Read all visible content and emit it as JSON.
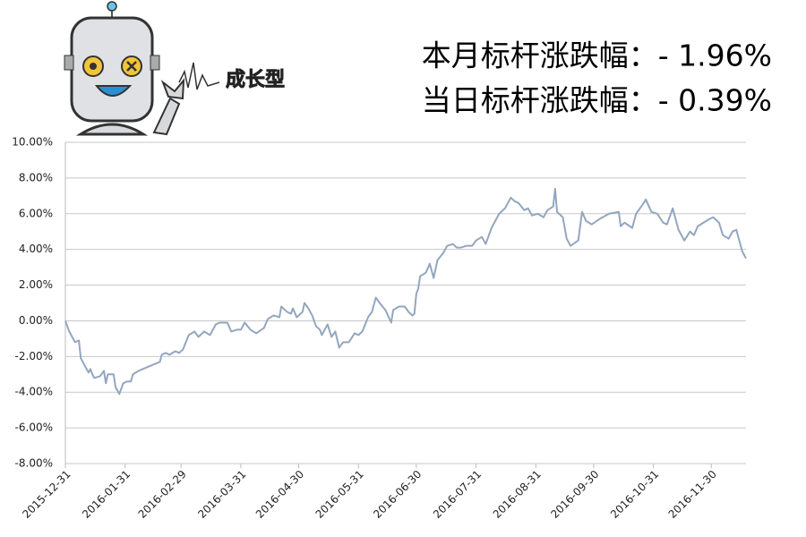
{
  "logo": {
    "text": "成长型"
  },
  "chart_data": {
    "type": "line",
    "annotations": [
      "本月标杆涨跌幅：- 1.96%",
      "当日标杆涨跌幅：- 0.39%"
    ],
    "x": [
      "2015-12-31",
      "2016-01-02",
      "2016-01-05",
      "2016-01-07",
      "2016-01-08",
      "2016-01-10",
      "2016-01-12",
      "2016-01-13",
      "2016-01-14",
      "2016-01-15",
      "2016-01-18",
      "2016-01-20",
      "2016-01-21",
      "2016-01-22",
      "2016-01-25",
      "2016-01-26",
      "2016-01-28",
      "2016-01-30",
      "2016-02-01",
      "2016-02-03",
      "2016-02-04",
      "2016-02-07",
      "2016-02-18",
      "2016-02-19",
      "2016-02-21",
      "2016-02-23",
      "2016-02-26",
      "2016-02-28",
      "2016-03-01",
      "2016-03-04",
      "2016-03-07",
      "2016-03-09",
      "2016-03-12",
      "2016-03-15",
      "2016-03-18",
      "2016-03-20",
      "2016-03-24",
      "2016-03-26",
      "2016-03-29",
      "2016-03-31",
      "2016-04-02",
      "2016-04-05",
      "2016-04-08",
      "2016-04-12",
      "2016-04-14",
      "2016-04-17",
      "2016-04-20",
      "2016-04-21",
      "2016-04-23",
      "2016-04-24",
      "2016-04-26",
      "2016-04-27",
      "2016-04-29",
      "2016-05-02",
      "2016-05-03",
      "2016-05-05",
      "2016-05-07",
      "2016-05-09",
      "2016-05-11",
      "2016-05-12",
      "2016-05-15",
      "2016-05-17",
      "2016-05-19",
      "2016-05-21",
      "2016-05-23",
      "2016-05-26",
      "2016-05-29",
      "2016-05-31",
      "2016-06-02",
      "2016-06-05",
      "2016-06-07",
      "2016-06-09",
      "2016-06-11",
      "2016-06-14",
      "2016-06-17",
      "2016-06-18",
      "2016-06-21",
      "2016-06-24",
      "2016-06-26",
      "2016-06-28",
      "2016-06-29",
      "2016-06-30",
      "2016-07-01",
      "2016-07-02",
      "2016-07-05",
      "2016-07-07",
      "2016-07-09",
      "2016-07-11",
      "2016-07-14",
      "2016-07-16",
      "2016-07-19",
      "2016-07-21",
      "2016-07-23",
      "2016-07-26",
      "2016-07-29",
      "2016-07-31",
      "2016-08-03",
      "2016-08-05",
      "2016-08-08",
      "2016-08-10",
      "2016-08-12",
      "2016-08-15",
      "2016-08-18",
      "2016-08-20",
      "2016-08-22",
      "2016-08-25",
      "2016-08-27",
      "2016-08-29",
      "2016-09-01",
      "2016-09-04",
      "2016-09-06",
      "2016-09-09",
      "2016-09-10",
      "2016-09-11",
      "2016-09-14",
      "2016-09-16",
      "2016-09-18",
      "2016-09-22",
      "2016-09-24",
      "2016-09-26",
      "2016-09-29",
      "2016-10-03",
      "2016-10-08",
      "2016-10-13",
      "2016-10-14",
      "2016-10-16",
      "2016-10-20",
      "2016-10-22",
      "2016-10-26",
      "2016-10-27",
      "2016-10-30",
      "2016-11-02",
      "2016-11-05",
      "2016-11-07",
      "2016-11-10",
      "2016-11-13",
      "2016-11-16",
      "2016-11-19",
      "2016-11-21",
      "2016-11-23",
      "2016-11-26",
      "2016-11-29",
      "2016-12-01",
      "2016-12-04",
      "2016-12-06",
      "2016-12-09",
      "2016-12-11",
      "2016-12-13",
      "2016-12-16",
      "2016-12-18"
    ],
    "series": [
      {
        "color": "#94a6bf",
        "values": [
          0.0,
          -0.6,
          -1.2,
          -1.1,
          -2.1,
          -2.5,
          -2.9,
          -2.7,
          -3.0,
          -3.2,
          -3.1,
          -2.8,
          -3.5,
          -3.0,
          -3.0,
          -3.7,
          -4.1,
          -3.5,
          -3.4,
          -3.4,
          -3.0,
          -2.8,
          -2.3,
          -1.9,
          -1.8,
          -1.9,
          -1.7,
          -1.8,
          -1.6,
          -0.8,
          -0.6,
          -0.9,
          -0.6,
          -0.8,
          -0.2,
          -0.1,
          -0.1,
          -0.6,
          -0.5,
          -0.5,
          -0.1,
          -0.5,
          -0.7,
          -0.4,
          0.1,
          0.3,
          0.2,
          0.8,
          0.6,
          0.5,
          0.4,
          0.7,
          0.2,
          0.5,
          1.0,
          0.7,
          0.3,
          -0.3,
          -0.5,
          -0.8,
          -0.2,
          -0.9,
          -0.6,
          -1.5,
          -1.2,
          -1.2,
          -0.7,
          -0.8,
          -0.6,
          0.2,
          0.5,
          1.3,
          1.0,
          0.6,
          -0.1,
          0.6,
          0.8,
          0.8,
          0.5,
          0.3,
          0.4,
          1.5,
          1.8,
          2.5,
          2.7,
          3.2,
          2.4,
          3.4,
          3.8,
          4.2,
          4.3,
          4.1,
          4.1,
          4.2,
          4.2,
          4.5,
          4.7,
          4.3,
          5.2,
          5.6,
          6.0,
          6.3,
          6.9,
          6.7,
          6.6,
          6.2,
          6.3,
          5.9,
          6.0,
          5.8,
          6.2,
          6.4,
          7.4,
          6.1,
          5.8,
          4.6,
          4.2,
          4.5,
          6.1,
          5.6,
          5.4,
          5.7,
          6.0,
          6.1,
          5.3,
          5.5,
          5.2,
          6.0,
          6.6,
          6.8,
          6.1,
          6.0,
          5.5,
          5.4,
          6.3,
          5.1,
          4.5,
          5.0,
          4.8,
          5.3,
          5.5,
          5.7,
          5.8,
          5.5,
          4.8,
          4.6,
          5.0,
          5.1,
          3.9,
          3.5
        ]
      }
    ],
    "xlim": [
      "2015-12-31",
      "2016-12-18"
    ],
    "xticks": [
      "2015-12-31",
      "2016-01-31",
      "2016-02-29",
      "2016-03-31",
      "2016-04-30",
      "2016-05-31",
      "2016-06-30",
      "2016-07-31",
      "2016-08-31",
      "2016-09-30",
      "2016-10-31",
      "2016-11-30"
    ],
    "ylim": [
      -8,
      10
    ],
    "yticks": [
      {
        "value": -8,
        "label": "-8.00%"
      },
      {
        "value": -6,
        "label": "-6.00%"
      },
      {
        "value": -4,
        "label": "-4.00%"
      },
      {
        "value": -2,
        "label": "-2.00%"
      },
      {
        "value": 0,
        "label": "0.00%"
      },
      {
        "value": 2,
        "label": "2.00%"
      },
      {
        "value": 4,
        "label": "4.00%"
      },
      {
        "value": 6,
        "label": "6.00%"
      },
      {
        "value": 8,
        "label": "8.00%"
      },
      {
        "value": 10,
        "label": "10.00%"
      }
    ],
    "grid": true
  }
}
